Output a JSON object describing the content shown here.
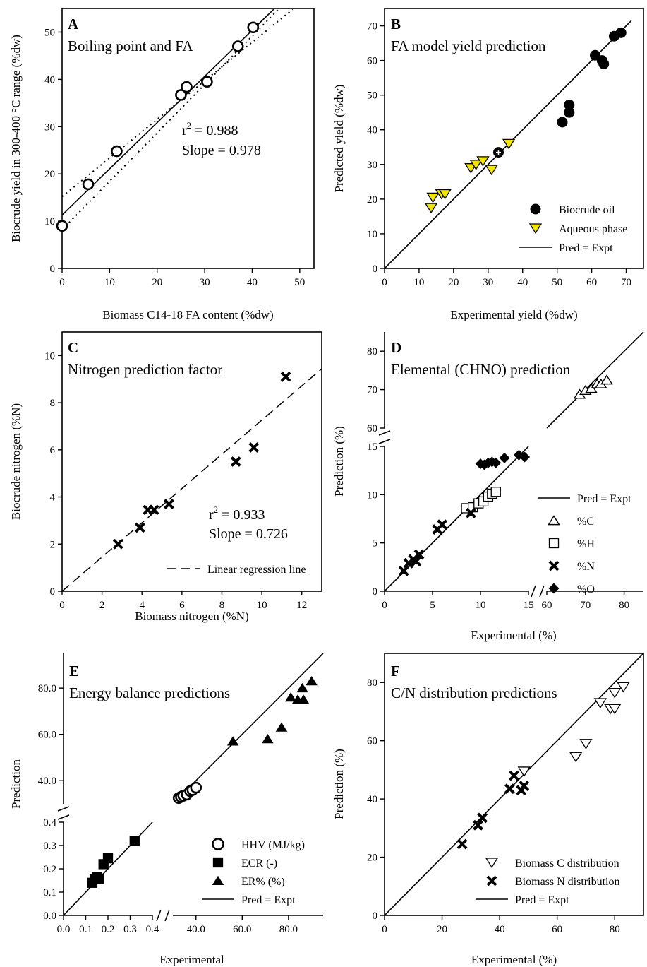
{
  "chart_data": [
    {
      "type": "scatter",
      "label": "A",
      "title": "Boiling point and FA",
      "xlabel": "Biomass C14-18 FA content (%dw)",
      "ylabel": "Biocrude yield in 300-400 °C range (%dw)",
      "xlim": [
        0,
        53
      ],
      "ylim": [
        0,
        55
      ],
      "xticks": [
        0,
        10,
        20,
        30,
        40,
        50
      ],
      "yticks": [
        0,
        10,
        20,
        30,
        40,
        50
      ],
      "points": [
        [
          0,
          9
        ],
        [
          5.5,
          17.8
        ],
        [
          11.5,
          24.8
        ],
        [
          25,
          36.7
        ],
        [
          26.2,
          38.4
        ],
        [
          30.5,
          39.5
        ],
        [
          37,
          47
        ],
        [
          40.2,
          51
        ]
      ],
      "annotations": [
        "r² = 0.988",
        "Slope = 0.978"
      ],
      "r2_label": "r",
      "r2_sup": "2",
      "r2_value": " = 0.988",
      "slope_text": "Slope = 0.978"
    },
    {
      "type": "scatter",
      "label": "B",
      "title": "FA model yield prediction",
      "xlabel": "Experimental yield (%dw)",
      "ylabel": "Predicted yield (%dw)",
      "xlim": [
        0,
        75
      ],
      "ylim": [
        0,
        75
      ],
      "xticks": [
        0,
        10,
        20,
        30,
        40,
        50,
        60,
        70
      ],
      "yticks": [
        0,
        10,
        20,
        30,
        40,
        50,
        60,
        70
      ],
      "series": [
        {
          "name": "Biocrude oil",
          "points": [
            [
              33,
              33.5
            ],
            [
              51.5,
              42.2
            ],
            [
              53.5,
              45
            ],
            [
              53.5,
              47.2
            ],
            [
              61,
              61.5
            ],
            [
              63,
              60
            ],
            [
              63.5,
              59
            ],
            [
              66.5,
              67
            ],
            [
              68.5,
              68
            ]
          ]
        },
        {
          "name": "Aqueous phase",
          "points": [
            [
              13.5,
              17.5
            ],
            [
              14,
              20.5
            ],
            [
              16.5,
              21.5
            ],
            [
              17.5,
              21.5
            ],
            [
              25,
              29
            ],
            [
              26.5,
              30
            ],
            [
              28.5,
              31
            ],
            [
              31,
              28.5
            ],
            [
              36,
              36
            ]
          ]
        },
        {
          "name": "Pred = Expt"
        }
      ]
    },
    {
      "type": "scatter",
      "label": "C",
      "title": "Nitrogen prediction factor",
      "xlabel": "Biomass nitrogen (%N)",
      "ylabel": "Biocrude nitrogen (%N)",
      "xlim": [
        0,
        13
      ],
      "ylim": [
        0,
        11
      ],
      "xticks": [
        0,
        2,
        4,
        6,
        8,
        10,
        12
      ],
      "yticks": [
        0,
        2,
        4,
        6,
        8,
        10
      ],
      "points": [
        [
          2.8,
          2
        ],
        [
          3.9,
          2.7
        ],
        [
          4.3,
          3.45
        ],
        [
          4.6,
          3.45
        ],
        [
          5.35,
          3.7
        ],
        [
          8.7,
          5.5
        ],
        [
          9.6,
          6.1
        ],
        [
          11.2,
          9.1
        ]
      ],
      "annotations": [
        "r² = 0.933",
        "Slope = 0.726"
      ],
      "r2_label": "r",
      "r2_sup": "2",
      "r2_value": " = 0.933",
      "slope_text": "Slope = 0.726",
      "legend": "Linear regression line"
    },
    {
      "type": "scatter",
      "label": "D",
      "title": "Elemental (CHNO) prediction",
      "xlabel": "Experimental (%)",
      "ylabel": "Prediction (%)",
      "xticks": [
        "0",
        "5",
        "10",
        "15",
        "60",
        "70",
        "80"
      ],
      "yticks": [
        "0",
        "5",
        "10",
        "15",
        "60",
        "70",
        "80"
      ],
      "axis_breaks": {
        "x": [
          15,
          60
        ],
        "y": [
          15,
          60
        ]
      },
      "series": [
        {
          "name": "Pred = Expt"
        },
        {
          "name": "%C",
          "points": [
            [
              68.5,
              68.8
            ],
            [
              70,
              69.8
            ],
            [
              71.5,
              70.3
            ],
            [
              73,
              71.5
            ],
            [
              74,
              71.5
            ],
            [
              75.5,
              72.5
            ]
          ]
        },
        {
          "name": "%H",
          "points": [
            [
              8.5,
              8.6
            ],
            [
              9.2,
              8.7
            ],
            [
              9.8,
              9.1
            ],
            [
              10.3,
              9.3
            ],
            [
              10.8,
              9.8
            ],
            [
              11.2,
              10.1
            ],
            [
              11.6,
              10.3
            ]
          ]
        },
        {
          "name": "%N",
          "points": [
            [
              2,
              2.1
            ],
            [
              2.5,
              2.9
            ],
            [
              3,
              3.3
            ],
            [
              3.3,
              3.1
            ],
            [
              3.6,
              3.8
            ],
            [
              5.5,
              6.4
            ],
            [
              6,
              6.9
            ],
            [
              9,
              8.1
            ]
          ]
        },
        {
          "name": "%O",
          "points": [
            [
              10,
              13.2
            ],
            [
              10.4,
              13.1
            ],
            [
              10.8,
              13.3
            ],
            [
              11.2,
              13.4
            ],
            [
              11.6,
              13.3
            ],
            [
              12.5,
              13.8
            ],
            [
              14,
              14.1
            ],
            [
              14.6,
              13.9
            ]
          ]
        }
      ]
    },
    {
      "type": "scatter",
      "label": "E",
      "title": "Energy balance predictions",
      "xlabel": "Experimental",
      "ylabel": "Prediction",
      "xticks": [
        "0.0",
        "0.1",
        "0.2",
        "0.3",
        "0.4",
        "40.0",
        "60.0",
        "80.0"
      ],
      "yticks": [
        "0.0",
        "0.1",
        "0.2",
        "0.3",
        "0.4",
        "40.0",
        "60.0",
        "80.0"
      ],
      "axis_breaks": {
        "x": [
          0.4,
          30
        ],
        "y": [
          0.4,
          30
        ]
      },
      "series": [
        {
          "name": "HHV (MJ/kg)",
          "points": [
            [
              32.5,
              32.5
            ],
            [
              33.5,
              33
            ],
            [
              34.5,
              33.5
            ],
            [
              36,
              34
            ],
            [
              37.5,
              35.5
            ],
            [
              38.5,
              36
            ],
            [
              40,
              37
            ]
          ]
        },
        {
          "name": "ECR (-)",
          "points": [
            [
              0.13,
              0.14
            ],
            [
              0.14,
              0.155
            ],
            [
              0.15,
              0.165
            ],
            [
              0.16,
              0.155
            ],
            [
              0.18,
              0.22
            ],
            [
              0.2,
              0.245
            ],
            [
              0.32,
              0.32
            ]
          ]
        },
        {
          "name": "ER% (%)",
          "points": [
            [
              56,
              57
            ],
            [
              71,
              58
            ],
            [
              77,
              63
            ],
            [
              81,
              76
            ],
            [
              84,
              75
            ],
            [
              86,
              80
            ],
            [
              86.5,
              75
            ],
            [
              90,
              83
            ]
          ]
        },
        {
          "name": "Pred = Expt"
        }
      ]
    },
    {
      "type": "scatter",
      "label": "F",
      "title": "C/N distribution predictions",
      "xlabel": "Experimental (%)",
      "ylabel": "Prediction (%)",
      "xlim": [
        0,
        90
      ],
      "ylim": [
        0,
        90
      ],
      "xticks": [
        0,
        20,
        40,
        60,
        80
      ],
      "yticks": [
        0,
        20,
        40,
        60,
        80
      ],
      "series": [
        {
          "name": "Biomass C distribution",
          "points": [
            [
              48.5,
              49.5
            ],
            [
              66.5,
              54.5
            ],
            [
              70,
              59
            ],
            [
              75,
              73
            ],
            [
              78.5,
              71
            ],
            [
              80,
              71
            ],
            [
              80,
              76.5
            ],
            [
              83,
              78.5
            ]
          ]
        },
        {
          "name": "Biomass N distribution",
          "points": [
            [
              27,
              24.5
            ],
            [
              32.5,
              31
            ],
            [
              34,
              33.5
            ],
            [
              43.5,
              43.5
            ],
            [
              45,
              48
            ],
            [
              47.5,
              43
            ],
            [
              48.5,
              44.5
            ]
          ]
        },
        {
          "name": "Pred = Expt"
        }
      ]
    }
  ]
}
